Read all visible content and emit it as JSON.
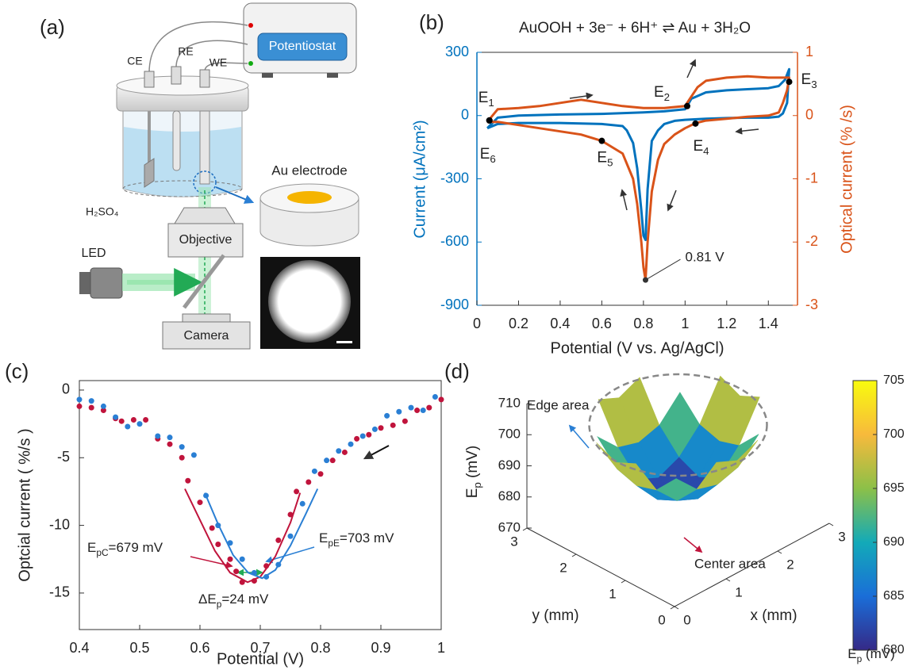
{
  "diagram": {
    "label": "(a)",
    "potentiostat": "Potentiostat",
    "ce": "CE",
    "re": "RE",
    "we": "WE",
    "electrolyte": "H₂SO₄",
    "au_electrode": "Au electrode",
    "led": "LED",
    "objective": "Objective",
    "camera": "Camera"
  },
  "chart_data": [
    {
      "type": "line",
      "panel_label": "(b)",
      "title": "AuOOH + 3e⁻ + 6H⁺ ⇌ Au + 3H₂O",
      "x_label": "Potential (V vs. Ag/AgCl)",
      "y_label": "Current (μA/cm²)",
      "y2_label": "Optical current (% /s)",
      "xlim": [
        0,
        1.54
      ],
      "xticks": [
        0,
        0.2,
        0.4,
        0.6,
        0.8,
        1,
        1.2,
        1.4
      ],
      "ylim": [
        -900,
        300
      ],
      "yticks": [
        -900,
        -600,
        -300,
        0,
        300
      ],
      "y2lim": [
        -3,
        1
      ],
      "y2ticks": [
        -3,
        -2,
        -1,
        0,
        1
      ],
      "series": [
        {
          "color": "#0072bd",
          "x": [
            0.05,
            0.1,
            0.2,
            0.4,
            0.6,
            0.8,
            0.9,
            1.0,
            1.01,
            1.03,
            1.1,
            1.2,
            1.3,
            1.4,
            1.45,
            1.48,
            1.5,
            1.49,
            1.47,
            1.45,
            1.4,
            1.3,
            1.2,
            1.1,
            1.0,
            0.95,
            0.9,
            0.87,
            0.84,
            0.82,
            0.81,
            0.8,
            0.79,
            0.77,
            0.75,
            0.72,
            0.7,
            0.6,
            0.4,
            0.2,
            0.1,
            0.05
          ],
          "values": [
            -60,
            -10,
            0,
            5,
            8,
            15,
            20,
            30,
            45,
            80,
            110,
            120,
            125,
            130,
            140,
            170,
            220,
            60,
            10,
            -5,
            -10,
            -10,
            -12,
            -15,
            -20,
            -25,
            -40,
            -70,
            -120,
            -350,
            -590,
            -570,
            -450,
            -250,
            -130,
            -70,
            -50,
            -40,
            -35,
            -35,
            -40,
            -60
          ]
        },
        {
          "color": "#d95319",
          "axis": "y2",
          "x": [
            0.05,
            0.1,
            0.2,
            0.3,
            0.4,
            0.5,
            0.6,
            0.7,
            0.8,
            0.9,
            1.0,
            1.03,
            1.06,
            1.1,
            1.2,
            1.3,
            1.4,
            1.45,
            1.5,
            1.49,
            1.47,
            1.45,
            1.4,
            1.3,
            1.2,
            1.1,
            1.05,
            1.0,
            0.95,
            0.9,
            0.87,
            0.84,
            0.82,
            0.81,
            0.8,
            0.79,
            0.77,
            0.75,
            0.7,
            0.6,
            0.5,
            0.4,
            0.3,
            0.2,
            0.1,
            0.05
          ],
          "values": [
            -0.1,
            0.1,
            0.12,
            0.15,
            0.2,
            0.25,
            0.2,
            0.15,
            0.12,
            0.12,
            0.15,
            0.3,
            0.45,
            0.55,
            0.6,
            0.62,
            0.6,
            0.6,
            0.6,
            0.4,
            0.2,
            0.05,
            0,
            -0.02,
            -0.05,
            -0.08,
            -0.12,
            -0.2,
            -0.3,
            -0.45,
            -0.7,
            -1.2,
            -2.0,
            -2.6,
            -2.4,
            -2.0,
            -1.4,
            -1.0,
            -0.6,
            -0.4,
            -0.3,
            -0.25,
            -0.2,
            -0.15,
            -0.1,
            -0.1
          ]
        }
      ],
      "points": [
        {
          "text": "E",
          "sub": "1",
          "x": 0.06,
          "y": -23
        },
        {
          "text": "E",
          "sub": "2",
          "x": 1.01,
          "y": 45
        },
        {
          "text": "E",
          "sub": "3",
          "x": 1.5,
          "y": 160
        },
        {
          "text": "E",
          "sub": "4",
          "x": 1.05,
          "y": -38
        },
        {
          "text": "E",
          "sub": "5",
          "x": 0.6,
          "y": -120
        },
        {
          "text": "E",
          "sub": "6",
          "x": 0.06,
          "y": -23
        }
      ],
      "annotation": {
        "text": "0.81 V",
        "x": 0.81,
        "y": -2.6,
        "axis": "y2"
      }
    },
    {
      "type": "scatter",
      "panel_label": "(c)",
      "x_label": "Potential (V)",
      "y_label": "Optcial current ( %/s )",
      "xlim": [
        0.4,
        1
      ],
      "xticks": [
        0.4,
        0.5,
        0.6,
        0.7,
        0.8,
        0.9,
        1
      ],
      "ylim": [
        -17.7,
        0.7
      ],
      "yticks": [
        -15,
        -10,
        -5,
        0
      ],
      "series": [
        {
          "color": "#c0143c",
          "x": [
            0.4,
            0.42,
            0.44,
            0.46,
            0.47,
            0.49,
            0.51,
            0.53,
            0.55,
            0.57,
            0.58,
            0.6,
            0.62,
            0.63,
            0.65,
            0.66,
            0.67,
            0.69,
            0.71,
            0.73,
            0.75,
            0.76,
            0.78,
            0.8,
            0.82,
            0.84,
            0.86,
            0.88,
            0.9,
            0.92,
            0.94,
            0.96,
            0.98,
            1.0
          ],
          "values": [
            -1.2,
            -1.3,
            -1.5,
            -2.1,
            -2.3,
            -2.2,
            -2.2,
            -3.6,
            -4.0,
            -5.0,
            -6.7,
            -8.3,
            -10.2,
            -11.4,
            -12.5,
            -13.4,
            -14.2,
            -14.1,
            -13.0,
            -11.1,
            -9.2,
            -7.5,
            -6.8,
            -6.2,
            -5.2,
            -4.6,
            -3.6,
            -3.3,
            -2.8,
            -2.6,
            -2.3,
            -1.5,
            -1.3,
            -0.7
          ]
        },
        {
          "color": "#2a7fd4",
          "x": [
            0.4,
            0.42,
            0.44,
            0.46,
            0.48,
            0.5,
            0.53,
            0.55,
            0.57,
            0.59,
            0.61,
            0.63,
            0.65,
            0.67,
            0.69,
            0.71,
            0.73,
            0.75,
            0.77,
            0.79,
            0.81,
            0.83,
            0.85,
            0.87,
            0.89,
            0.91,
            0.93,
            0.95,
            0.97,
            0.99
          ],
          "values": [
            -0.7,
            -0.8,
            -1.2,
            -2.0,
            -2.7,
            -2.5,
            -3.4,
            -3.5,
            -4.2,
            -4.8,
            -7.8,
            -10.0,
            -11.3,
            -12.5,
            -13.5,
            -13.8,
            -12.9,
            -10.8,
            -8.4,
            -6.0,
            -5.2,
            -4.5,
            -4.0,
            -3.4,
            -2.9,
            -1.9,
            -1.6,
            -1.3,
            -1.5,
            -0.5
          ]
        }
      ],
      "fits": [
        {
          "color": "#c0143c",
          "x": [
            0.575,
            0.6,
            0.625,
            0.65,
            0.679,
            0.7,
            0.725,
            0.75,
            0.766
          ],
          "values": [
            -7.3,
            -9.6,
            -11.9,
            -13.5,
            -14.2,
            -13.8,
            -12.3,
            -9.8,
            -7.6
          ]
        },
        {
          "color": "#2a7fd4",
          "x": [
            0.608,
            0.63,
            0.655,
            0.68,
            0.703,
            0.725,
            0.75,
            0.775,
            0.795
          ],
          "values": [
            -7.6,
            -9.9,
            -12.2,
            -13.5,
            -13.9,
            -13.3,
            -11.5,
            -9.2,
            -7.3
          ]
        }
      ],
      "annotations": [
        {
          "text": "E",
          "sub": "pC",
          "tail": "=679 mV"
        },
        {
          "text": "E",
          "sub": "pE",
          "tail": "=703 mV"
        },
        {
          "text": "ΔE",
          "sub": "p",
          "tail": "=24 mV"
        }
      ]
    },
    {
      "type": "surface",
      "panel_label": "(d)",
      "x_label": "x (mm)",
      "y_label": "y (mm)",
      "z_label": {
        "text": "E",
        "sub": "p",
        "tail": " (mV)"
      },
      "xlim": [
        0,
        3
      ],
      "ylim": [
        0,
        3
      ],
      "xticks": [
        0,
        1,
        2,
        3
      ],
      "yticks": [
        0,
        1,
        2,
        3
      ],
      "zlim": [
        670,
        710
      ],
      "zticks": [
        670,
        680,
        690,
        700,
        710
      ],
      "x": [
        0.3,
        0.7,
        1.1,
        1.5,
        1.9,
        2.3,
        2.7
      ],
      "y": [
        0.3,
        0.7,
        1.1,
        1.5,
        1.9,
        2.3,
        2.7
      ],
      "z": [
        [
          null,
          null,
          704,
          701,
          704,
          null,
          null
        ],
        [
          null,
          699,
          692,
          690,
          692,
          699,
          null
        ],
        [
          704,
          692,
          685,
          682,
          685,
          692,
          704
        ],
        [
          701,
          690,
          682,
          680,
          682,
          690,
          701
        ],
        [
          704,
          692,
          685,
          682,
          685,
          692,
          704
        ],
        [
          null,
          699,
          692,
          690,
          692,
          699,
          null
        ],
        [
          null,
          null,
          704,
          701,
          704,
          null,
          null
        ]
      ],
      "colormap": [
        "#352a87",
        "#1a6ed8",
        "#13aab8",
        "#8cc048",
        "#f7ba3c",
        "#f9fb0e"
      ],
      "clim": [
        680,
        705
      ],
      "cticks": [
        680,
        685,
        690,
        695,
        700,
        705
      ],
      "colorbar_label": {
        "text": "E",
        "sub": "p",
        "tail": " (mV)"
      },
      "annotations": [
        "Edge area",
        "Center area"
      ]
    }
  ]
}
